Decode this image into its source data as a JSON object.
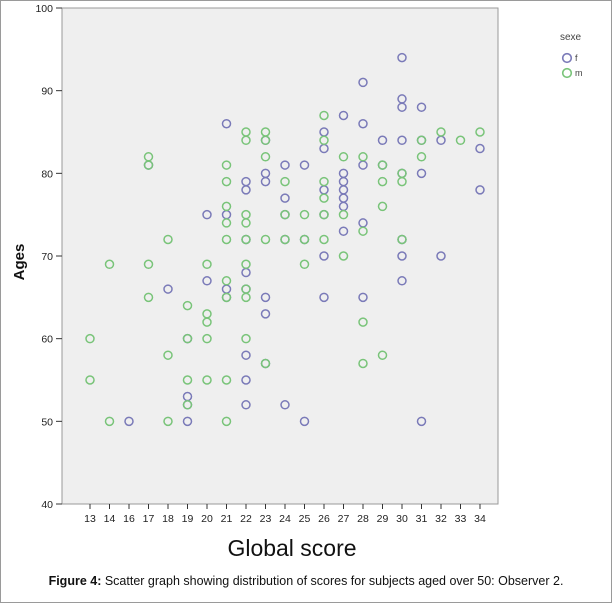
{
  "chart_data": {
    "type": "scatter",
    "title": "",
    "xlabel": "Global score",
    "ylabel": "Ages",
    "x_ticks": [
      13,
      14,
      16,
      17,
      18,
      19,
      20,
      21,
      22,
      23,
      24,
      25,
      26,
      27,
      28,
      29,
      30,
      31,
      32,
      33,
      34
    ],
    "ylim": [
      40,
      100
    ],
    "y_ticks": [
      40,
      50,
      60,
      70,
      80,
      90,
      100
    ],
    "grid": false,
    "legend": {
      "title": "sexe",
      "position": "top-right"
    },
    "series": [
      {
        "name": "f",
        "color": "#7a7ab8",
        "points": [
          [
            16,
            50
          ],
          [
            17,
            81
          ],
          [
            18,
            66
          ],
          [
            19,
            53
          ],
          [
            19,
            52
          ],
          [
            19,
            50
          ],
          [
            19,
            60
          ],
          [
            20,
            75
          ],
          [
            20,
            67
          ],
          [
            21,
            86
          ],
          [
            21,
            75
          ],
          [
            21,
            66
          ],
          [
            21,
            65
          ],
          [
            22,
            79
          ],
          [
            22,
            78
          ],
          [
            22,
            72
          ],
          [
            22,
            68
          ],
          [
            22,
            66
          ],
          [
            22,
            58
          ],
          [
            22,
            55
          ],
          [
            22,
            52
          ],
          [
            23,
            84
          ],
          [
            23,
            80
          ],
          [
            23,
            79
          ],
          [
            23,
            65
          ],
          [
            23,
            63
          ],
          [
            23,
            57
          ],
          [
            24,
            81
          ],
          [
            24,
            77
          ],
          [
            24,
            75
          ],
          [
            24,
            72
          ],
          [
            24,
            52
          ],
          [
            25,
            81
          ],
          [
            25,
            72
          ],
          [
            25,
            50
          ],
          [
            26,
            85
          ],
          [
            26,
            83
          ],
          [
            26,
            78
          ],
          [
            26,
            75
          ],
          [
            26,
            70
          ],
          [
            26,
            65
          ],
          [
            27,
            87
          ],
          [
            27,
            80
          ],
          [
            27,
            79
          ],
          [
            27,
            78
          ],
          [
            27,
            77
          ],
          [
            27,
            76
          ],
          [
            27,
            73
          ],
          [
            28,
            91
          ],
          [
            28,
            86
          ],
          [
            28,
            81
          ],
          [
            28,
            74
          ],
          [
            28,
            65
          ],
          [
            29,
            84
          ],
          [
            29,
            81
          ],
          [
            30,
            94
          ],
          [
            30,
            89
          ],
          [
            30,
            88
          ],
          [
            30,
            84
          ],
          [
            30,
            80
          ],
          [
            30,
            72
          ],
          [
            30,
            70
          ],
          [
            30,
            67
          ],
          [
            31,
            88
          ],
          [
            31,
            84
          ],
          [
            31,
            80
          ],
          [
            31,
            50
          ],
          [
            32,
            84
          ],
          [
            32,
            70
          ],
          [
            34,
            83
          ],
          [
            34,
            78
          ]
        ]
      },
      {
        "name": "m",
        "color": "#79c479",
        "points": [
          [
            13,
            60
          ],
          [
            13,
            55
          ],
          [
            14,
            69
          ],
          [
            14,
            50
          ],
          [
            17,
            82
          ],
          [
            17,
            81
          ],
          [
            17,
            69
          ],
          [
            17,
            65
          ],
          [
            18,
            72
          ],
          [
            18,
            58
          ],
          [
            18,
            50
          ],
          [
            19,
            64
          ],
          [
            19,
            60
          ],
          [
            19,
            55
          ],
          [
            19,
            52
          ],
          [
            20,
            69
          ],
          [
            20,
            63
          ],
          [
            20,
            62
          ],
          [
            20,
            60
          ],
          [
            20,
            55
          ],
          [
            21,
            81
          ],
          [
            21,
            79
          ],
          [
            21,
            76
          ],
          [
            21,
            74
          ],
          [
            21,
            72
          ],
          [
            21,
            67
          ],
          [
            21,
            65
          ],
          [
            21,
            55
          ],
          [
            21,
            50
          ],
          [
            22,
            85
          ],
          [
            22,
            84
          ],
          [
            22,
            75
          ],
          [
            22,
            74
          ],
          [
            22,
            72
          ],
          [
            22,
            69
          ],
          [
            22,
            66
          ],
          [
            22,
            65
          ],
          [
            22,
            60
          ],
          [
            23,
            85
          ],
          [
            23,
            84
          ],
          [
            23,
            82
          ],
          [
            23,
            72
          ],
          [
            23,
            57
          ],
          [
            24,
            79
          ],
          [
            24,
            75
          ],
          [
            24,
            72
          ],
          [
            25,
            75
          ],
          [
            25,
            72
          ],
          [
            25,
            69
          ],
          [
            26,
            87
          ],
          [
            26,
            84
          ],
          [
            26,
            79
          ],
          [
            26,
            77
          ],
          [
            26,
            75
          ],
          [
            26,
            72
          ],
          [
            27,
            82
          ],
          [
            27,
            75
          ],
          [
            27,
            70
          ],
          [
            28,
            82
          ],
          [
            28,
            73
          ],
          [
            28,
            62
          ],
          [
            28,
            57
          ],
          [
            29,
            81
          ],
          [
            29,
            79
          ],
          [
            29,
            76
          ],
          [
            29,
            58
          ],
          [
            30,
            80
          ],
          [
            30,
            79
          ],
          [
            30,
            72
          ],
          [
            31,
            84
          ],
          [
            31,
            82
          ],
          [
            32,
            85
          ],
          [
            33,
            84
          ],
          [
            34,
            85
          ]
        ]
      }
    ]
  },
  "caption": {
    "label": "Figure 4:",
    "text": " Scatter graph showing distribution of scores for subjects aged over 50: Observer 2."
  }
}
